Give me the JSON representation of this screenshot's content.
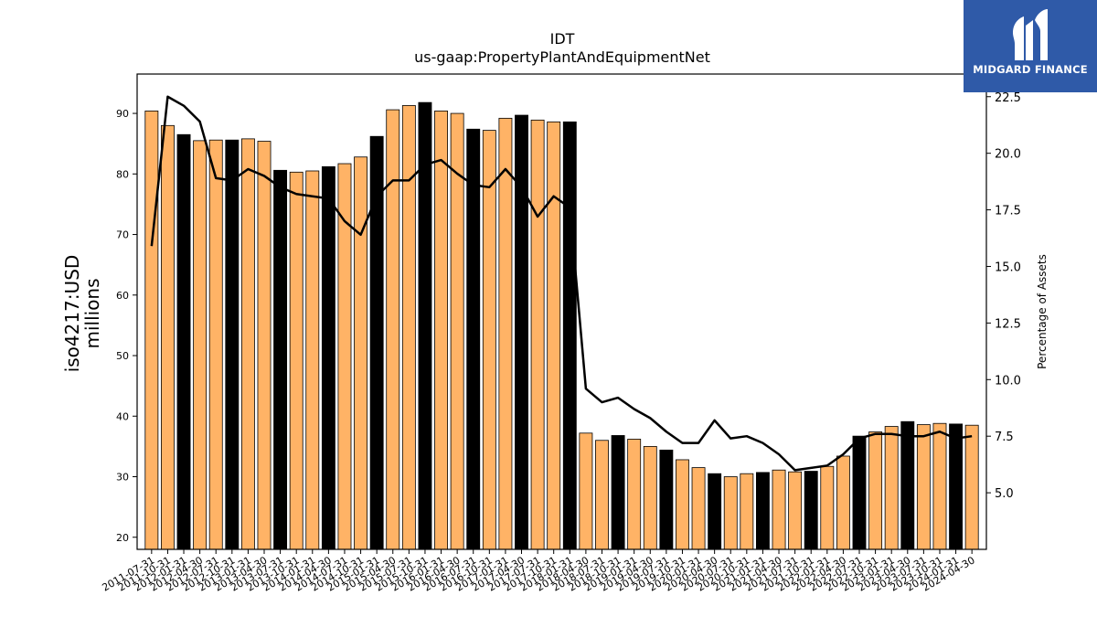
{
  "logo": {
    "name": "MIDGARD FINANCE"
  },
  "chart_data": {
    "type": "bar",
    "title": "IDT",
    "subtitle": "us-gaap:PropertyPlantAndEquipmentNet",
    "ylabel": "iso4217:USD\nmillions",
    "y2label": "Percentage of Assets",
    "ylim": [
      18,
      96.5
    ],
    "y2lim": [
      2.5,
      23.5
    ],
    "yticks": [
      20,
      30,
      40,
      50,
      60,
      70,
      80,
      90
    ],
    "y2ticks": [
      "5.0",
      "7.5",
      "10.0",
      "12.5",
      "15.0",
      "17.5",
      "20.0",
      "22.5"
    ],
    "colors": {
      "bar": "#ffb366",
      "bar_highlight": "#000000",
      "line": "#000000"
    },
    "categories": [
      "2011-07-31",
      "2011-10-31",
      "2012-01-31",
      "2012-04-30",
      "2012-07-31",
      "2012-10-31",
      "2013-01-31",
      "2013-04-30",
      "2013-07-31",
      "2013-10-31",
      "2014-01-31",
      "2014-04-30",
      "2014-07-31",
      "2014-10-31",
      "2015-01-31",
      "2015-04-30",
      "2015-07-31",
      "2015-10-31",
      "2016-01-31",
      "2016-04-30",
      "2016-07-31",
      "2016-10-31",
      "2017-01-31",
      "2017-04-30",
      "2017-07-31",
      "2017-10-31",
      "2018-01-31",
      "2018-04-30",
      "2018-07-31",
      "2018-10-31",
      "2019-01-31",
      "2019-04-30",
      "2019-07-31",
      "2019-10-31",
      "2020-01-31",
      "2020-04-30",
      "2020-07-31",
      "2020-10-31",
      "2021-01-31",
      "2021-04-30",
      "2021-07-31",
      "2021-10-31",
      "2022-01-31",
      "2022-04-30",
      "2022-07-31",
      "2022-10-31",
      "2023-01-31",
      "2023-04-30",
      "2023-07-31",
      "2023-10-31",
      "2024-01-31",
      "2024-04-30"
    ],
    "series": [
      {
        "type": "bar",
        "axis": "left",
        "values": [
          90.4,
          88.0,
          86.5,
          85.5,
          85.6,
          85.6,
          85.8,
          85.4,
          80.6,
          80.3,
          80.5,
          81.2,
          81.7,
          82.8,
          86.2,
          90.6,
          91.3,
          91.8,
          90.4,
          90.0,
          87.4,
          87.2,
          89.2,
          89.7,
          88.9,
          88.6,
          88.6,
          37.2,
          36.0,
          36.8,
          36.2,
          35.0,
          34.4,
          32.8,
          31.5,
          30.5,
          30.0,
          30.5,
          30.7,
          31.1,
          30.8,
          30.9,
          31.7,
          33.4,
          36.7,
          37.4,
          38.3,
          39.1,
          38.6,
          38.8,
          38.7,
          38.5
        ]
      },
      {
        "type": "line",
        "axis": "right",
        "values": [
          15.9,
          22.5,
          22.1,
          21.4,
          18.9,
          18.8,
          19.3,
          19.0,
          18.5,
          18.2,
          18.1,
          18.0,
          17.0,
          16.4,
          18.1,
          18.8,
          18.8,
          19.5,
          19.7,
          19.1,
          18.6,
          18.5,
          19.3,
          18.5,
          17.2,
          18.1,
          17.6,
          9.6,
          9.0,
          9.2,
          8.7,
          8.3,
          7.7,
          7.2,
          7.2,
          8.2,
          7.4,
          7.5,
          7.2,
          6.7,
          6.0,
          6.1,
          6.2,
          6.7,
          7.4,
          7.6,
          7.6,
          7.5,
          7.5,
          7.7,
          7.4,
          7.5
        ]
      }
    ]
  }
}
